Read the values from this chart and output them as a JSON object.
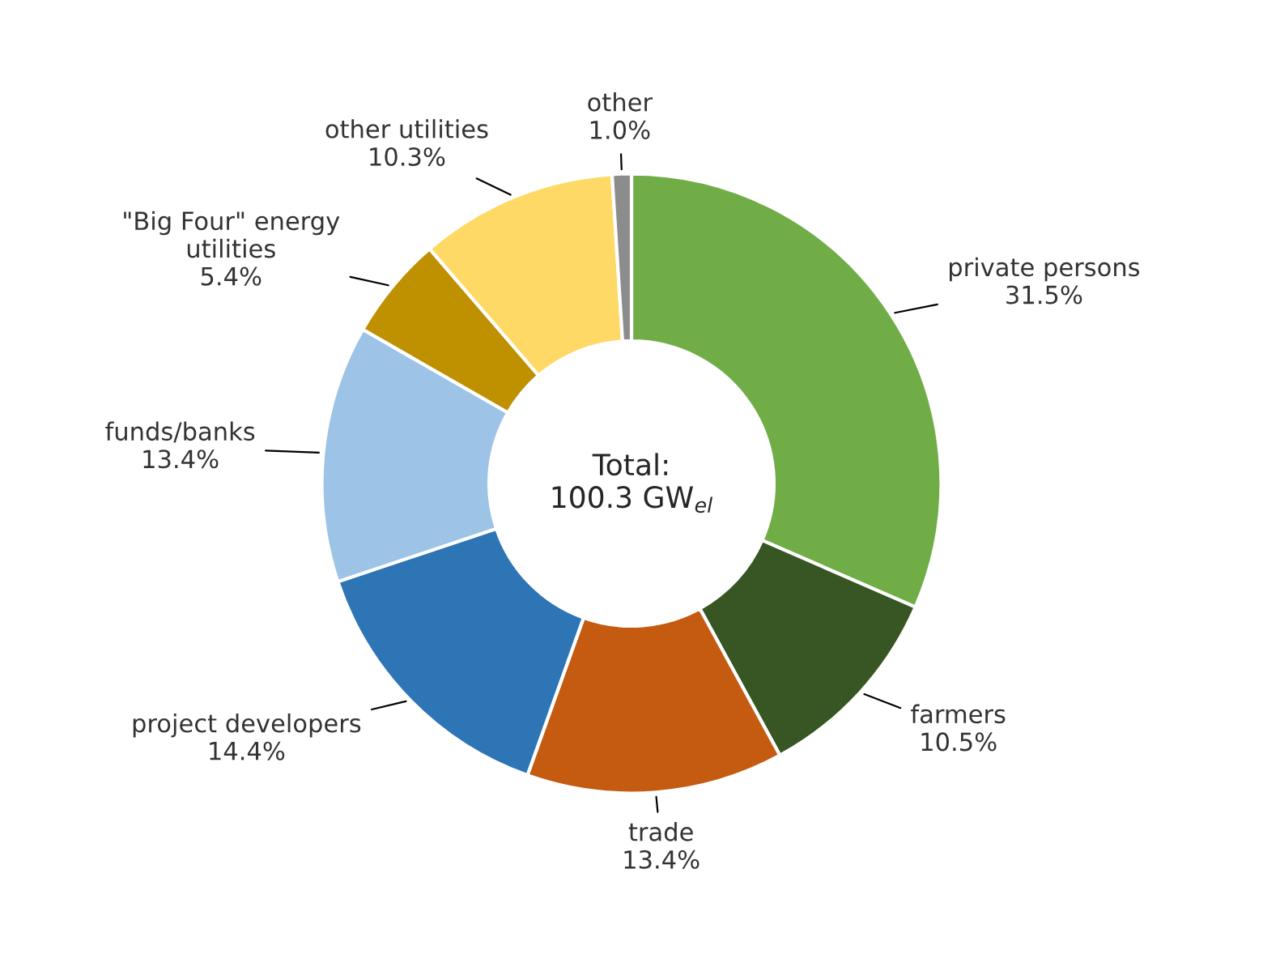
{
  "chart_data": {
    "type": "donut",
    "categories": [
      "private persons",
      "farmers",
      "trade",
      "project developers",
      "funds/banks",
      "\"Big Four\" energy\nutilities",
      "other utilities",
      "other"
    ],
    "values": [
      31.5,
      10.5,
      13.4,
      14.4,
      13.4,
      5.4,
      10.3,
      1.0
    ],
    "value_labels": [
      "31.5%",
      "10.5%",
      "13.4%",
      "14.4%",
      "13.4%",
      "5.4%",
      "10.3%",
      "1.0%"
    ],
    "colors": [
      "#70ad47",
      "#375623",
      "#c55a11",
      "#2e75b6",
      "#9dc3e6",
      "#bf9000",
      "#ffd966",
      "#8c8c8c"
    ],
    "annotations": [
      "Total:\n100.3 GW$_{el}$"
    ],
    "legend": false
  }
}
